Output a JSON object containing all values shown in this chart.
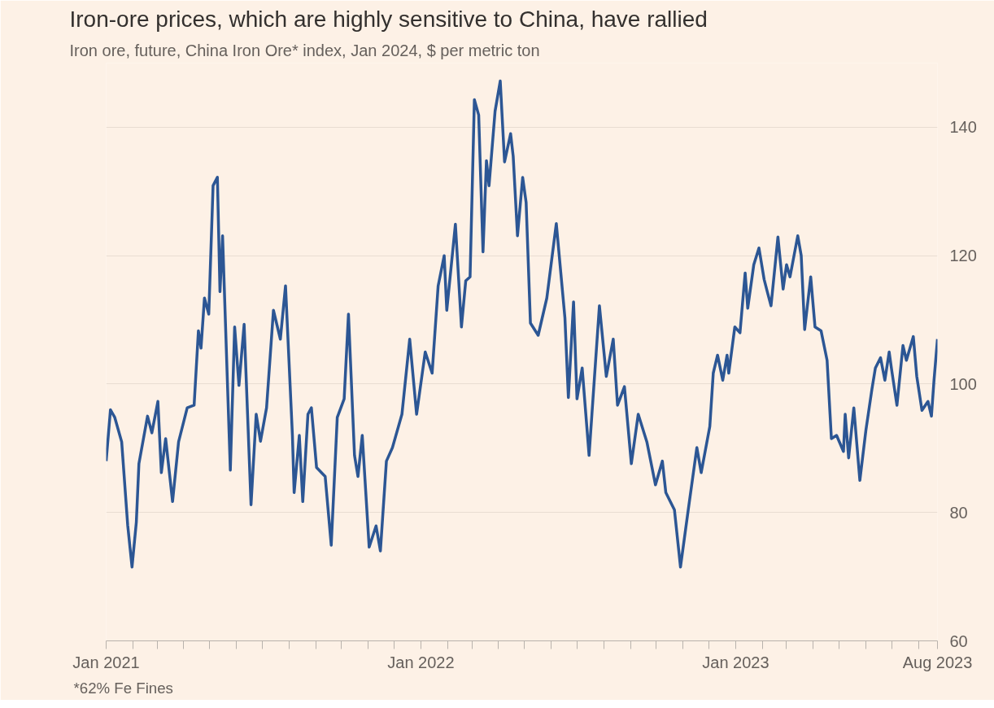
{
  "chart_data": {
    "type": "line",
    "title": "Iron-ore prices, which are highly sensitive to China, have rallied",
    "subtitle": "Iron ore, future, China Iron Ore* index, Jan 2024, $ per metric ton",
    "annotations": [
      "*62% Fe Fines"
    ],
    "x": [
      "2021-01-01",
      "2021-01-06",
      "2021-01-11",
      "2021-01-19",
      "2021-01-26",
      "2021-01-31",
      "2021-02-05",
      "2021-02-08",
      "2021-02-18",
      "2021-02-23",
      "2021-03-02",
      "2021-03-06",
      "2021-03-11",
      "2021-03-19",
      "2021-03-26",
      "2021-04-05",
      "2021-04-13",
      "2021-04-18",
      "2021-04-21",
      "2021-04-25",
      "2021-04-30",
      "2021-05-05",
      "2021-05-10",
      "2021-05-13",
      "2021-05-16",
      "2021-05-25",
      "2021-05-30",
      "2021-06-04",
      "2021-06-10",
      "2021-06-18",
      "2021-06-24",
      "2021-06-29",
      "2021-07-06",
      "2021-07-14",
      "2021-07-22",
      "2021-07-28",
      "2021-08-05",
      "2021-08-07",
      "2021-08-13",
      "2021-08-17",
      "2021-08-23",
      "2021-08-27",
      "2021-09-02",
      "2021-09-12",
      "2021-09-19",
      "2021-09-26",
      "2021-10-04",
      "2021-10-09",
      "2021-10-16",
      "2021-10-20",
      "2021-10-25",
      "2021-11-02",
      "2021-11-10",
      "2021-11-15",
      "2021-11-22",
      "2021-11-29",
      "2021-12-10",
      "2021-12-19",
      "2021-12-27",
      "2022-01-06",
      "2022-01-14",
      "2022-01-21",
      "2022-01-28",
      "2022-01-31",
      "2022-02-10",
      "2022-02-17",
      "2022-02-22",
      "2022-02-27",
      "2022-03-04",
      "2022-03-09",
      "2022-03-14",
      "2022-03-18",
      "2022-03-21",
      "2022-03-28",
      "2022-04-03",
      "2022-04-08",
      "2022-04-15",
      "2022-04-18",
      "2022-04-23",
      "2022-04-29",
      "2022-05-03",
      "2022-05-08",
      "2022-05-17",
      "2022-05-27",
      "2022-06-07",
      "2022-06-17",
      "2022-06-21",
      "2022-06-27",
      "2022-07-01",
      "2022-07-07",
      "2022-07-15",
      "2022-07-27",
      "2022-08-04",
      "2022-08-12",
      "2022-08-17",
      "2022-08-25",
      "2022-09-02",
      "2022-09-10",
      "2022-09-20",
      "2022-09-30",
      "2022-10-08",
      "2022-10-12",
      "2022-10-22",
      "2022-10-29",
      "2022-11-07",
      "2022-11-17",
      "2022-11-22",
      "2022-12-02",
      "2022-12-06",
      "2022-12-11",
      "2022-12-17",
      "2022-12-22",
      "2022-12-24",
      "2022-12-31",
      "2023-01-06",
      "2023-01-12",
      "2023-01-15",
      "2023-01-22",
      "2023-01-28",
      "2023-02-03",
      "2023-02-07",
      "2023-02-11",
      "2023-02-19",
      "2023-02-25",
      "2023-03-01",
      "2023-03-05",
      "2023-03-14",
      "2023-03-18",
      "2023-03-22",
      "2023-03-29",
      "2023-04-03",
      "2023-04-10",
      "2023-04-17",
      "2023-04-22",
      "2023-04-28",
      "2023-05-06",
      "2023-05-08",
      "2023-05-12",
      "2023-05-18",
      "2023-05-25",
      "2023-06-01",
      "2023-06-08",
      "2023-06-12",
      "2023-06-18",
      "2023-06-23",
      "2023-06-28",
      "2023-07-01",
      "2023-07-07",
      "2023-07-14",
      "2023-07-18",
      "2023-07-26",
      "2023-07-30",
      "2023-08-05",
      "2023-08-12",
      "2023-08-16",
      "2023-08-19",
      "2023-08-23"
    ],
    "series": [
      {
        "color": "#2c5694",
        "values": [
          88,
          96,
          94.8,
          91,
          78,
          71.5,
          78.5,
          87.6,
          95,
          92.4,
          97.3,
          86.2,
          91.5,
          81.7,
          91,
          96.3,
          96.7,
          108.3,
          105.6,
          113.4,
          110.9,
          130.9,
          132.2,
          114.4,
          123.1,
          86.6,
          108.9,
          99.8,
          109.3,
          81.2,
          95.3,
          91.1,
          96.3,
          111.5,
          107,
          115.3,
          92,
          83.1,
          92,
          81.7,
          95.3,
          96.3,
          87,
          85.6,
          74.9,
          94.8,
          97.7,
          110.9,
          88.9,
          85.6,
          92,
          74.6,
          77.9,
          74,
          88,
          90.1,
          95.3,
          107,
          95.3,
          105,
          101.7,
          115.3,
          120,
          111.5,
          124.9,
          108.9,
          116.1,
          116.7,
          144.3,
          141.9,
          120.6,
          134.8,
          130.9,
          142.5,
          147.2,
          134.6,
          139,
          135.5,
          123.1,
          132.2,
          128.3,
          109.5,
          107.6,
          113.4,
          125,
          110.3,
          97.9,
          112.8,
          97.7,
          102.5,
          88.9,
          112.2,
          101.2,
          107,
          96.7,
          99.6,
          87.6,
          95.3,
          91,
          84.3,
          88,
          83.1,
          80.4,
          71.5,
          80.4,
          90.1,
          86.2,
          93.4,
          101.7,
          104.5,
          100.6,
          104.5,
          101.7,
          108.9,
          108,
          117.3,
          111.8,
          118.6,
          121.2,
          116.3,
          114.2,
          112.2,
          122.9,
          114.8,
          118.6,
          116.7,
          123.1,
          120,
          108.5,
          116.7,
          108.9,
          108.3,
          103.7,
          91.5,
          92,
          89.5,
          95.3,
          88.5,
          96.3,
          85,
          92.8,
          99.2,
          102.5,
          104.1,
          100.6,
          105,
          102.1,
          96.7,
          106,
          103.7,
          107.4,
          101.2,
          95.9,
          97.3,
          95,
          100.6,
          107
        ]
      }
    ],
    "xlim": [
      "2021-01-01",
      "2023-08-23"
    ],
    "xticks": [
      {
        "value": "2021-01-01",
        "label": "Jan 2021"
      },
      {
        "value": "2021-02-01",
        "label": null
      },
      {
        "value": "2021-03-01",
        "label": null
      },
      {
        "value": "2021-04-01",
        "label": null
      },
      {
        "value": "2021-05-01",
        "label": null
      },
      {
        "value": "2021-06-01",
        "label": null
      },
      {
        "value": "2021-07-01",
        "label": null
      },
      {
        "value": "2021-08-01",
        "label": null
      },
      {
        "value": "2021-09-01",
        "label": null
      },
      {
        "value": "2021-10-01",
        "label": null
      },
      {
        "value": "2021-11-01",
        "label": null
      },
      {
        "value": "2021-12-01",
        "label": null
      },
      {
        "value": "2022-01-01",
        "label": "Jan 2022"
      },
      {
        "value": "2022-02-01",
        "label": null
      },
      {
        "value": "2022-03-01",
        "label": null
      },
      {
        "value": "2022-04-01",
        "label": null
      },
      {
        "value": "2022-05-01",
        "label": null
      },
      {
        "value": "2022-06-01",
        "label": null
      },
      {
        "value": "2022-07-01",
        "label": null
      },
      {
        "value": "2022-08-01",
        "label": null
      },
      {
        "value": "2022-09-01",
        "label": null
      },
      {
        "value": "2022-10-01",
        "label": null
      },
      {
        "value": "2022-11-01",
        "label": null
      },
      {
        "value": "2022-12-01",
        "label": null
      },
      {
        "value": "2023-01-01",
        "label": "Jan 2023"
      },
      {
        "value": "2023-02-01",
        "label": null
      },
      {
        "value": "2023-03-01",
        "label": null
      },
      {
        "value": "2023-04-01",
        "label": null
      },
      {
        "value": "2023-05-01",
        "label": null
      },
      {
        "value": "2023-06-01",
        "label": null
      },
      {
        "value": "2023-07-01",
        "label": null
      },
      {
        "value": "2023-08-01",
        "label": null
      },
      {
        "value": "2023-08-23",
        "label": "Aug 2023"
      }
    ],
    "ylim": [
      60,
      150
    ],
    "yticks": [
      60,
      80,
      100,
      120,
      140
    ],
    "grid": "y",
    "line_style": "solid"
  }
}
